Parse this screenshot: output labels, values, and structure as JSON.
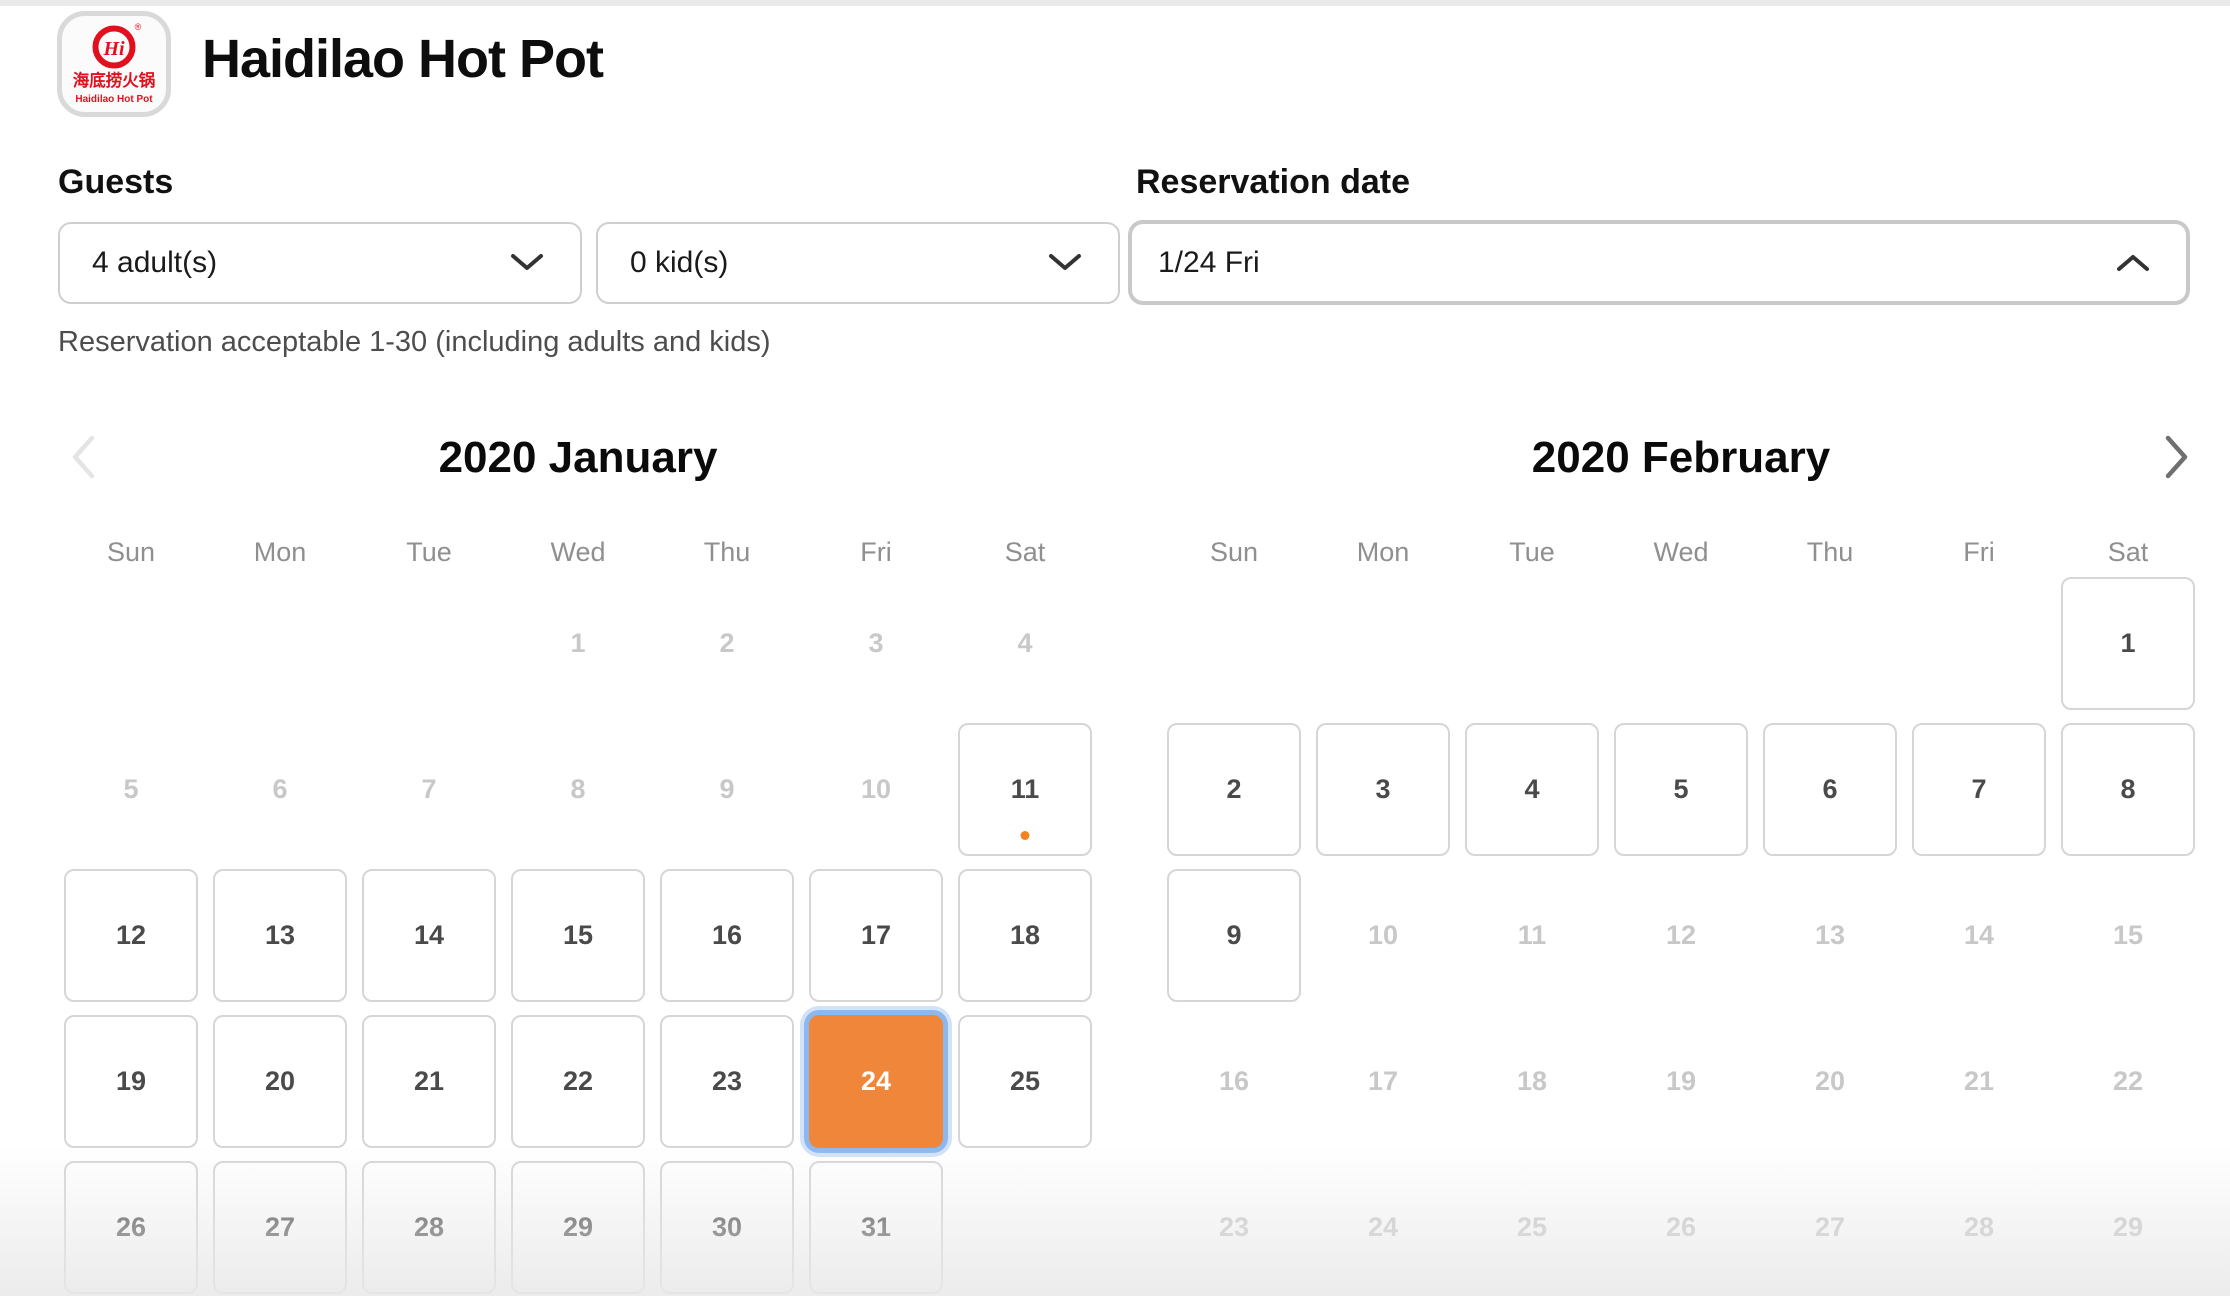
{
  "page": {
    "title": "Haidilao Hot Pot"
  },
  "logo": {
    "monogram": "Hi",
    "registered_mark": "®",
    "chinese_name": "海底捞火锅",
    "english_name": "Haidilao Hot Pot"
  },
  "guests": {
    "label": "Guests",
    "adults_value": "4 adult(s)",
    "kids_value": "0 kid(s)",
    "note": "Reservation acceptable 1-30 (including adults and kids)"
  },
  "reservation_date": {
    "label": "Reservation date",
    "value": "1/24 Fri"
  },
  "calendar": {
    "weekdays": [
      "Sun",
      "Mon",
      "Tue",
      "Wed",
      "Thu",
      "Fri",
      "Sat"
    ],
    "nav": {
      "prev_enabled": false,
      "next_enabled": true
    },
    "months": [
      {
        "title": "2020 January",
        "cells": [
          {
            "day": "1",
            "col": 4,
            "row": 1,
            "state": "disabled"
          },
          {
            "day": "2",
            "col": 5,
            "row": 1,
            "state": "disabled"
          },
          {
            "day": "3",
            "col": 6,
            "row": 1,
            "state": "disabled"
          },
          {
            "day": "4",
            "col": 7,
            "row": 1,
            "state": "disabled"
          },
          {
            "day": "5",
            "col": 1,
            "row": 2,
            "state": "disabled"
          },
          {
            "day": "6",
            "col": 2,
            "row": 2,
            "state": "disabled"
          },
          {
            "day": "7",
            "col": 3,
            "row": 2,
            "state": "disabled"
          },
          {
            "day": "8",
            "col": 4,
            "row": 2,
            "state": "disabled"
          },
          {
            "day": "9",
            "col": 5,
            "row": 2,
            "state": "disabled"
          },
          {
            "day": "10",
            "col": 6,
            "row": 2,
            "state": "disabled"
          },
          {
            "day": "11",
            "col": 7,
            "row": 2,
            "state": "available",
            "dot": true
          },
          {
            "day": "12",
            "col": 1,
            "row": 3,
            "state": "available"
          },
          {
            "day": "13",
            "col": 2,
            "row": 3,
            "state": "available"
          },
          {
            "day": "14",
            "col": 3,
            "row": 3,
            "state": "available"
          },
          {
            "day": "15",
            "col": 4,
            "row": 3,
            "state": "available"
          },
          {
            "day": "16",
            "col": 5,
            "row": 3,
            "state": "available"
          },
          {
            "day": "17",
            "col": 6,
            "row": 3,
            "state": "available"
          },
          {
            "day": "18",
            "col": 7,
            "row": 3,
            "state": "available"
          },
          {
            "day": "19",
            "col": 1,
            "row": 4,
            "state": "available"
          },
          {
            "day": "20",
            "col": 2,
            "row": 4,
            "state": "available"
          },
          {
            "day": "21",
            "col": 3,
            "row": 4,
            "state": "available"
          },
          {
            "day": "22",
            "col": 4,
            "row": 4,
            "state": "available"
          },
          {
            "day": "23",
            "col": 5,
            "row": 4,
            "state": "available"
          },
          {
            "day": "24",
            "col": 6,
            "row": 4,
            "state": "selected"
          },
          {
            "day": "25",
            "col": 7,
            "row": 4,
            "state": "available"
          },
          {
            "day": "26",
            "col": 1,
            "row": 5,
            "state": "available"
          },
          {
            "day": "27",
            "col": 2,
            "row": 5,
            "state": "available"
          },
          {
            "day": "28",
            "col": 3,
            "row": 5,
            "state": "available"
          },
          {
            "day": "29",
            "col": 4,
            "row": 5,
            "state": "available"
          },
          {
            "day": "30",
            "col": 5,
            "row": 5,
            "state": "available"
          },
          {
            "day": "31",
            "col": 6,
            "row": 5,
            "state": "available"
          }
        ]
      },
      {
        "title": "2020 February",
        "cells": [
          {
            "day": "1",
            "col": 7,
            "row": 1,
            "state": "available"
          },
          {
            "day": "2",
            "col": 1,
            "row": 2,
            "state": "available"
          },
          {
            "day": "3",
            "col": 2,
            "row": 2,
            "state": "available"
          },
          {
            "day": "4",
            "col": 3,
            "row": 2,
            "state": "available"
          },
          {
            "day": "5",
            "col": 4,
            "row": 2,
            "state": "available"
          },
          {
            "day": "6",
            "col": 5,
            "row": 2,
            "state": "available"
          },
          {
            "day": "7",
            "col": 6,
            "row": 2,
            "state": "available"
          },
          {
            "day": "8",
            "col": 7,
            "row": 2,
            "state": "available"
          },
          {
            "day": "9",
            "col": 1,
            "row": 3,
            "state": "available"
          },
          {
            "day": "10",
            "col": 2,
            "row": 3,
            "state": "disabled"
          },
          {
            "day": "11",
            "col": 3,
            "row": 3,
            "state": "disabled"
          },
          {
            "day": "12",
            "col": 4,
            "row": 3,
            "state": "disabled"
          },
          {
            "day": "13",
            "col": 5,
            "row": 3,
            "state": "disabled"
          },
          {
            "day": "14",
            "col": 6,
            "row": 3,
            "state": "disabled"
          },
          {
            "day": "15",
            "col": 7,
            "row": 3,
            "state": "disabled"
          },
          {
            "day": "16",
            "col": 1,
            "row": 4,
            "state": "disabled"
          },
          {
            "day": "17",
            "col": 2,
            "row": 4,
            "state": "disabled"
          },
          {
            "day": "18",
            "col": 3,
            "row": 4,
            "state": "disabled"
          },
          {
            "day": "19",
            "col": 4,
            "row": 4,
            "state": "disabled"
          },
          {
            "day": "20",
            "col": 5,
            "row": 4,
            "state": "disabled"
          },
          {
            "day": "21",
            "col": 6,
            "row": 4,
            "state": "disabled"
          },
          {
            "day": "22",
            "col": 7,
            "row": 4,
            "state": "disabled"
          },
          {
            "day": "23",
            "col": 1,
            "row": 5,
            "state": "disabled"
          },
          {
            "day": "24",
            "col": 2,
            "row": 5,
            "state": "disabled"
          },
          {
            "day": "25",
            "col": 3,
            "row": 5,
            "state": "disabled"
          },
          {
            "day": "26",
            "col": 4,
            "row": 5,
            "state": "disabled"
          },
          {
            "day": "27",
            "col": 5,
            "row": 5,
            "state": "disabled"
          },
          {
            "day": "28",
            "col": 6,
            "row": 5,
            "state": "disabled"
          },
          {
            "day": "29",
            "col": 7,
            "row": 5,
            "state": "disabled"
          }
        ]
      }
    ]
  },
  "colors": {
    "brand_red": "#e2101e",
    "selected_orange": "#f0863a",
    "selection_ring_blue": "#8cb8f0",
    "dot_orange": "#f58220",
    "cell_border_gray": "#d6d6d6",
    "disabled_text_gray": "#c8c8c8"
  }
}
